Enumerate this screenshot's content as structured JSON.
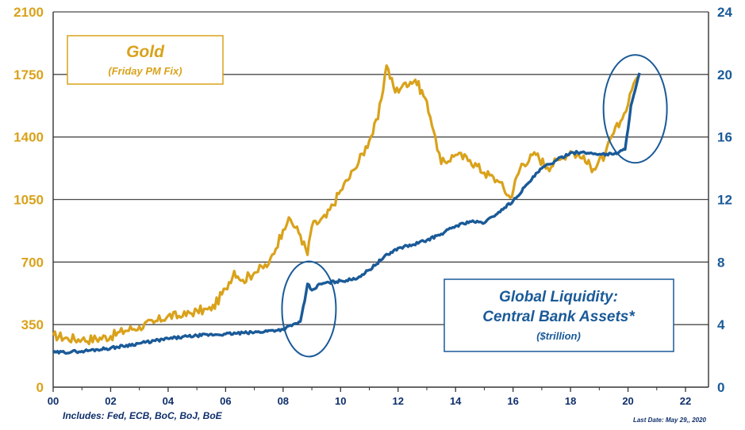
{
  "chart_data": {
    "type": "line",
    "title": "",
    "x_tick_labels": [
      "00",
      "02",
      "04",
      "06",
      "08",
      "10",
      "12",
      "14",
      "16",
      "18",
      "20",
      "22"
    ],
    "x_tick_years": [
      2000,
      2002,
      2004,
      2006,
      2008,
      2010,
      2012,
      2014,
      2016,
      2018,
      2020,
      2022
    ],
    "xlim": [
      2000,
      2022.8
    ],
    "left_axis": {
      "range": [
        0,
        2100
      ],
      "ticks": [
        0,
        350,
        700,
        1050,
        1400,
        1750,
        2100
      ],
      "labels": [
        "0",
        "350",
        "700",
        "1050",
        "1400",
        "1750",
        "2100"
      ]
    },
    "right_axis": {
      "range": [
        0,
        24
      ],
      "ticks": [
        0,
        4,
        8,
        12,
        16,
        20,
        24
      ],
      "labels": [
        "0",
        "4",
        "8",
        "12",
        "16",
        "20",
        "24"
      ]
    },
    "grid": true,
    "series": [
      {
        "name": "Gold",
        "axis": "left",
        "color": "#d9a21b",
        "x": [
          2000.0,
          2000.5,
          2001.0,
          2001.5,
          2002.0,
          2002.5,
          2003.0,
          2003.5,
          2004.0,
          2004.5,
          2005.0,
          2005.5,
          2006.0,
          2006.3,
          2006.6,
          2007.0,
          2007.5,
          2008.0,
          2008.2,
          2008.6,
          2008.85,
          2009.0,
          2009.5,
          2010.0,
          2010.5,
          2011.0,
          2011.3,
          2011.6,
          2011.9,
          2012.2,
          2012.6,
          2013.0,
          2013.3,
          2013.5,
          2014.0,
          2014.5,
          2015.0,
          2015.5,
          2015.9,
          2016.3,
          2016.8,
          2017.2,
          2017.7,
          2018.0,
          2018.4,
          2018.8,
          2019.2,
          2019.5,
          2019.8,
          2020.0,
          2020.2,
          2020.4
        ],
        "values": [
          290,
          275,
          265,
          270,
          285,
          315,
          340,
          360,
          400,
          395,
          430,
          430,
          550,
          650,
          600,
          640,
          690,
          880,
          950,
          850,
          740,
          900,
          950,
          1100,
          1220,
          1380,
          1500,
          1800,
          1650,
          1700,
          1720,
          1600,
          1400,
          1250,
          1300,
          1270,
          1200,
          1150,
          1060,
          1250,
          1300,
          1230,
          1280,
          1320,
          1280,
          1220,
          1300,
          1420,
          1500,
          1580,
          1700,
          1740
        ]
      },
      {
        "name": "Global Liquidity: Central Bank Assets*",
        "axis": "right",
        "color": "#1a5a98",
        "unit": "$trillion",
        "x": [
          2000.0,
          2001.0,
          2002.0,
          2003.0,
          2004.0,
          2005.0,
          2006.0,
          2007.0,
          2008.0,
          2008.6,
          2008.75,
          2008.85,
          2009.0,
          2009.3,
          2010.0,
          2010.5,
          2011.0,
          2011.5,
          2012.0,
          2012.5,
          2013.0,
          2013.5,
          2014.0,
          2014.5,
          2015.0,
          2015.5,
          2016.0,
          2016.5,
          2017.0,
          2017.5,
          2018.0,
          2018.5,
          2019.0,
          2019.5,
          2019.9,
          2020.1,
          2020.25,
          2020.4
        ],
        "values": [
          2.2,
          2.3,
          2.5,
          2.8,
          3.1,
          3.3,
          3.4,
          3.5,
          3.7,
          4.2,
          5.5,
          6.6,
          6.2,
          6.6,
          6.8,
          6.9,
          7.5,
          8.3,
          8.9,
          9.1,
          9.4,
          9.8,
          10.3,
          10.6,
          10.5,
          11.2,
          11.9,
          13.0,
          14.0,
          14.5,
          15.0,
          15.0,
          14.9,
          14.9,
          15.2,
          18.0,
          19.0,
          20.1
        ]
      }
    ],
    "annotations": {
      "gold_label": "Gold",
      "gold_sublabel": "(Friday PM Fix)",
      "liquidity_label_line1": "Global Liquidity:",
      "liquidity_label_line2": "Central Bank Assets*",
      "liquidity_sublabel": "($trillion)",
      "footnote": "Includes: Fed, ECB, BoC, BoJ, BoE",
      "last_date": "Last Date: May 29,, 2020"
    },
    "highlight_circles": [
      {
        "center_year": 2008.9,
        "center_value_right": 5.0
      },
      {
        "center_year": 2020.25,
        "center_value_right": 17.8
      }
    ]
  }
}
